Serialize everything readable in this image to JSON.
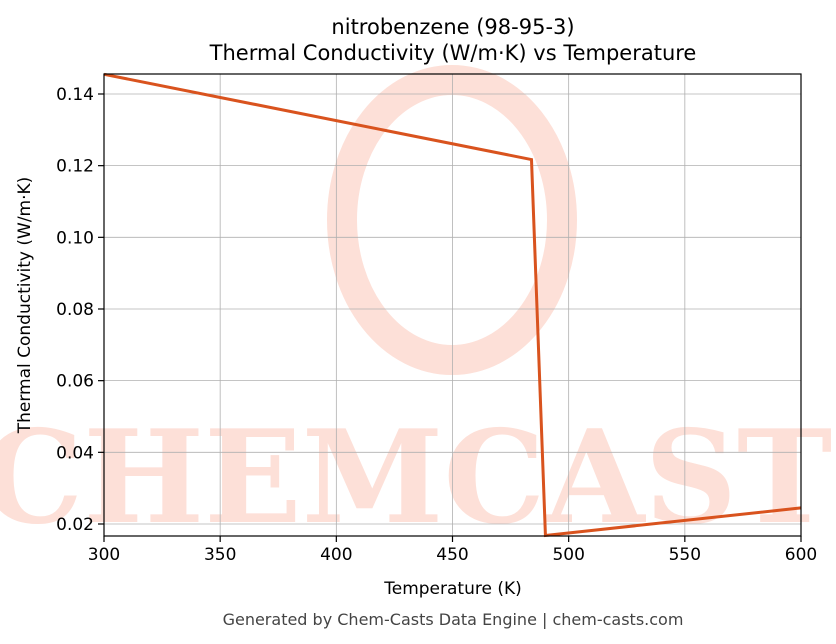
{
  "chart_data": {
    "type": "line",
    "title": "nitrobenzene (98-95-3)",
    "subtitle": "Thermal Conductivity (W/m·K) vs Temperature",
    "x_label": "Temperature (K)",
    "y_label": "Thermal Conductivity (W/m·K)",
    "footer": "Generated by Chem-Casts Data Engine | chem-casts.com",
    "watermark": "CHEMCASTS",
    "x": [
      300,
      484,
      490,
      600
    ],
    "series": [
      {
        "name": "Thermal Conductivity",
        "color": "#d9531e",
        "values": [
          0.1455,
          0.1217,
          0.0168,
          0.0245
        ]
      }
    ],
    "xlim": [
      300,
      600
    ],
    "ylim": [
      0.01665,
      0.14558
    ],
    "xticks": [
      300,
      350,
      400,
      450,
      500,
      550,
      600
    ],
    "yticks": [
      0.02,
      0.04,
      0.06,
      0.08,
      {
        "value": 0.1,
        "label": "0.10"
      },
      0.12,
      0.14
    ],
    "grid": true
  }
}
